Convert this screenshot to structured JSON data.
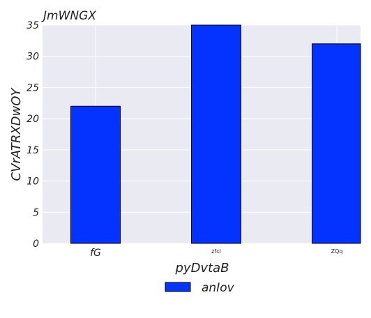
{
  "chart_data": {
    "type": "bar",
    "title": "JmWNGX",
    "xlabel": "pyDvtaB",
    "ylabel": "CVrATRXDwOY",
    "categories": [
      "fG",
      "zfcl",
      "ZQq"
    ],
    "series": [
      {
        "name": "anIov",
        "values": [
          22,
          35,
          32
        ],
        "color": "#0433ff"
      }
    ],
    "ylim": [
      0,
      35
    ],
    "yticks": [
      0,
      5,
      10,
      15,
      20,
      25,
      30,
      35
    ],
    "grid": true,
    "background": "#eaeaf2",
    "legend_position": "bottom-center"
  }
}
